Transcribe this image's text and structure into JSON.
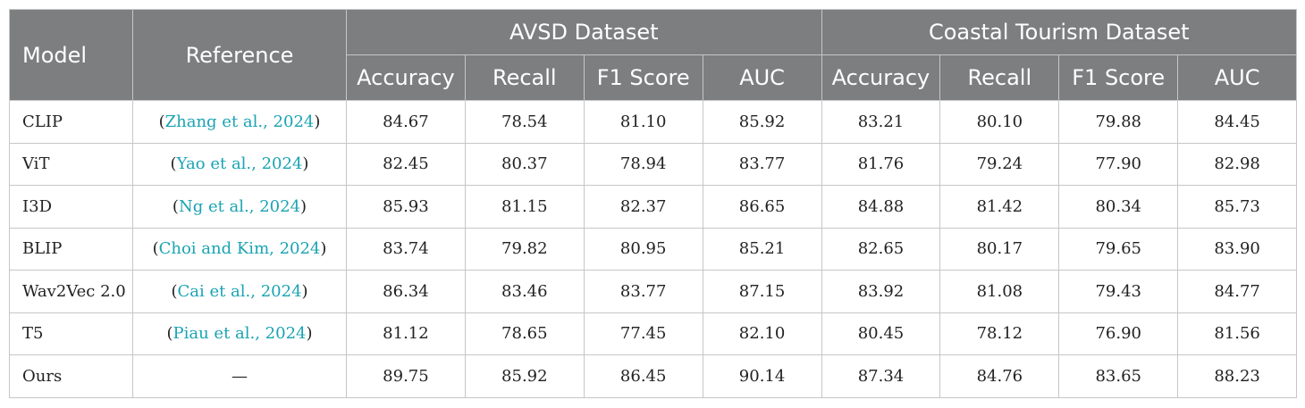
{
  "header": {
    "model": "Model",
    "reference": "Reference",
    "groups": [
      "AVSD Dataset",
      "Coastal Tourism Dataset"
    ],
    "metrics": [
      "Accuracy",
      "Recall",
      "F1 Score",
      "AUC",
      "Accuracy",
      "Recall",
      "F1 Score",
      "AUC"
    ]
  },
  "rows": [
    {
      "model": "CLIP",
      "open": "(",
      "ref": "Zhang et al., 2024",
      "close": ")",
      "values": [
        "84.67",
        "78.54",
        "81.10",
        "85.92",
        "83.21",
        "80.10",
        "79.88",
        "84.45"
      ]
    },
    {
      "model": "ViT",
      "open": "(",
      "ref": "Yao et al., 2024",
      "close": ")",
      "values": [
        "82.45",
        "80.37",
        "78.94",
        "83.77",
        "81.76",
        "79.24",
        "77.90",
        "82.98"
      ]
    },
    {
      "model": "I3D",
      "open": "(",
      "ref": "Ng et al., 2024",
      "close": ")",
      "values": [
        "85.93",
        "81.15",
        "82.37",
        "86.65",
        "84.88",
        "81.42",
        "80.34",
        "85.73"
      ]
    },
    {
      "model": "BLIP",
      "open": "(",
      "ref": "Choi and Kim, 2024",
      "close": ")",
      "values": [
        "83.74",
        "79.82",
        "80.95",
        "85.21",
        "82.65",
        "80.17",
        "79.65",
        "83.90"
      ]
    },
    {
      "model": "Wav2Vec 2.0",
      "open": "(",
      "ref": "Cai et al., 2024",
      "close": ")",
      "values": [
        "86.34",
        "83.46",
        "83.77",
        "87.15",
        "83.92",
        "81.08",
        "79.43",
        "84.77"
      ]
    },
    {
      "model": "T5",
      "open": "(",
      "ref": "Piau et al., 2024",
      "close": ")",
      "values": [
        "81.12",
        "78.65",
        "77.45",
        "82.10",
        "80.45",
        "78.12",
        "76.90",
        "81.56"
      ]
    },
    {
      "model": "Ours",
      "open": "",
      "ref": "—",
      "close": "",
      "values": [
        "89.75",
        "85.92",
        "86.45",
        "90.14",
        "87.34",
        "84.76",
        "83.65",
        "88.23"
      ]
    }
  ],
  "colors": {
    "header_bg": "#7d7e80",
    "header_text": "#ffffff",
    "link": "#1aa3b3",
    "border": "#c6c6c6"
  }
}
